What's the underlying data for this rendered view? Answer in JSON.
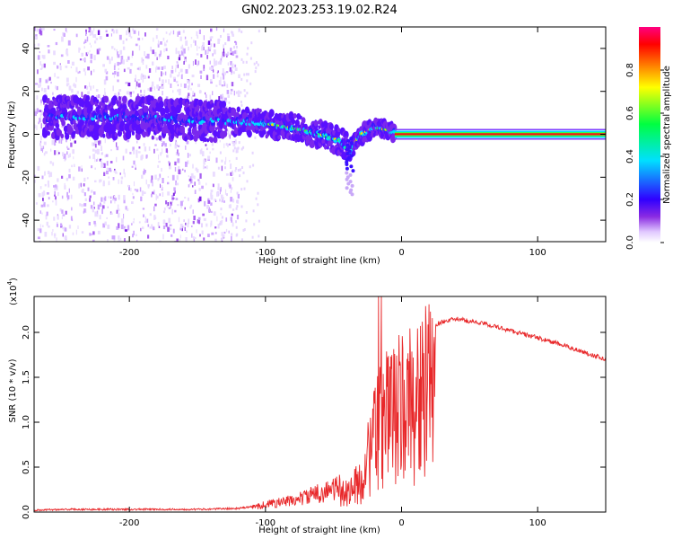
{
  "figure": {
    "title": "GN02.2023.253.19.02.R24"
  },
  "chart_data": [
    {
      "type": "heatmap",
      "xlabel": "Height of straight line (km)",
      "ylabel": "Frequency (Hz)",
      "xlim": [
        -270,
        150
      ],
      "ylim": [
        -50,
        50
      ],
      "xticks": [
        -200,
        -100,
        0,
        100
      ],
      "yticks": [
        -40,
        -20,
        0,
        20,
        40
      ],
      "colorbar": {
        "label": "Normalized spectral amplitude",
        "range": [
          0,
          1
        ],
        "ticks": [
          "0.0",
          "0.2",
          "0.4",
          "0.6",
          "0.8"
        ],
        "colors": [
          "#ffffff",
          "#e0c8ff",
          "#8a2be2",
          "#3000ff",
          "#00e0ff",
          "#00ff40",
          "#ffff00",
          "#ff8000",
          "#ff0000",
          "#ff0080"
        ]
      },
      "ridge": {
        "x": [
          -260,
          -230,
          -200,
          -170,
          -140,
          -120,
          -100,
          -80,
          -60,
          -45,
          -38,
          -30,
          -20,
          -10,
          0,
          150
        ],
        "y": [
          8,
          8,
          8,
          7,
          6,
          6,
          5,
          3,
          0,
          -3,
          -8,
          0,
          3,
          2,
          0,
          0
        ]
      }
    },
    {
      "type": "line",
      "xlabel": "Height of straight line (km)",
      "ylabel": "SNR (10 * v/v)",
      "scale_label": "(x10",
      "scale_exp": "4",
      "scale_close": ")",
      "xlim": [
        -270,
        150
      ],
      "ylim": [
        0,
        2.4
      ],
      "xticks": [
        -200,
        -100,
        0,
        100
      ],
      "yticks": [
        "0.0",
        "0.5",
        "1.0",
        "1.5",
        "2.0"
      ],
      "color": "#e8282a",
      "envelope": {
        "x": [
          -270,
          -250,
          -200,
          -150,
          -120,
          -110,
          -100,
          -80,
          -60,
          -50,
          -40,
          -30,
          -25,
          -20,
          -15,
          -10,
          0,
          10,
          20,
          30,
          40,
          60,
          80,
          100,
          120,
          150
        ],
        "y": [
          0.02,
          0.03,
          0.03,
          0.03,
          0.04,
          0.06,
          0.1,
          0.15,
          0.25,
          0.3,
          0.35,
          0.5,
          0.9,
          1.2,
          1.5,
          1.6,
          1.75,
          1.9,
          2.05,
          2.12,
          2.15,
          2.1,
          2.02,
          1.94,
          1.85,
          1.7
        ]
      }
    }
  ]
}
